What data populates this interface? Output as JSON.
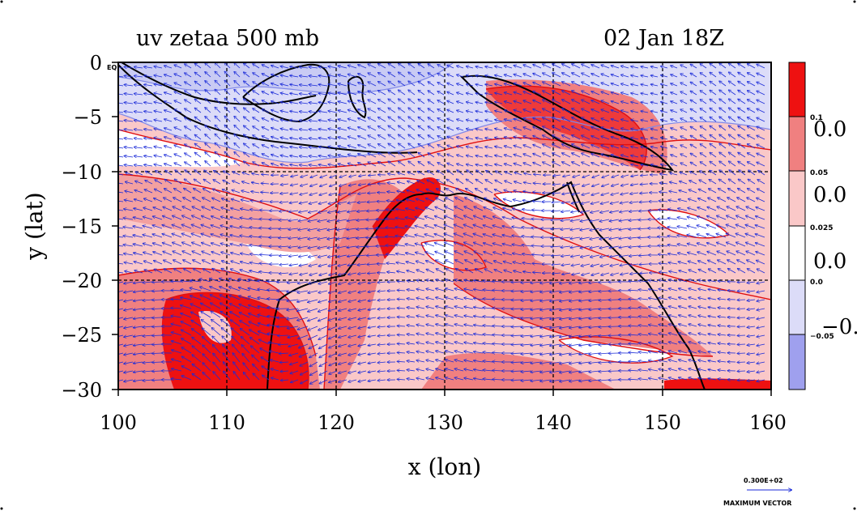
{
  "title_left": "uv zetaa 500 mb",
  "title_right": "02 Jan 18Z",
  "x_axis": {
    "label": "x (lon)",
    "ticks": [
      "100",
      "110",
      "120",
      "130",
      "140",
      "150",
      "160"
    ]
  },
  "y_axis": {
    "label": "y (lat)",
    "ticks": [
      "0",
      "−5",
      "−10",
      "−15",
      "−20",
      "−25",
      "−30"
    ]
  },
  "eq_label": "EQ",
  "colorbar": {
    "labels": [
      "0.1",
      "0.05",
      "0.025",
      "0.0",
      "−0.05"
    ],
    "clipped_labels": [
      "0.0",
      "0.0",
      "0.0",
      "−0."
    ],
    "colors": [
      "#ee1111",
      "#f08080",
      "#fac8c8",
      "#ffffff",
      "#dcdcf8",
      "#9fa0ee"
    ]
  },
  "vector_legend": {
    "value": "0.300E+02",
    "label": "MAXIMUM VECTOR"
  },
  "colors": {
    "vector": "#1a2ad8",
    "contour": "#e01010",
    "frame": "#000000",
    "blue_fill": "#dcdcf8"
  }
}
